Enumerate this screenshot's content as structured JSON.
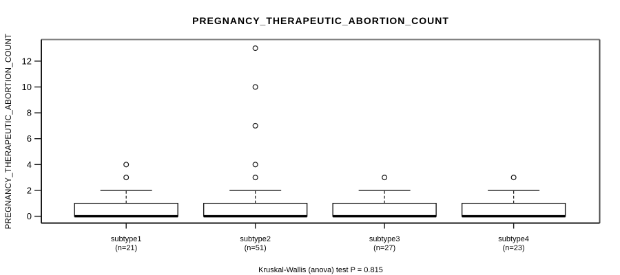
{
  "chart_data": {
    "type": "boxplot",
    "title": "PREGNANCY_THERAPEUTIC_ABORTION_COUNT",
    "ylabel": "PREGNANCY_THERAPEUTIC_ABORTION_COUNT",
    "footer": "Kruskal-Wallis (anova) test P = 0.815",
    "yticks": [
      0,
      2,
      4,
      6,
      8,
      10,
      12
    ],
    "ylim": [
      -0.53,
      13.67
    ],
    "xlim": [
      0.343,
      4.666
    ],
    "grid": false,
    "legend": "none",
    "colors": {
      "box_stroke": "#1a1a1a",
      "box_fill": "#ffffff",
      "median": "#000000",
      "border_top": "#808080",
      "border_right": "#4a4a4a",
      "border_dark": "#1a1a1a"
    },
    "box_width": 0.8,
    "cap_width": 0.4,
    "groups": [
      {
        "position": 1,
        "label": "subtype1",
        "n_label": "(n=21)",
        "n": 21,
        "median": 0,
        "q1": 0,
        "q3": 1,
        "whisker_low": 0,
        "whisker_high": 2,
        "outliers": [
          3,
          4
        ]
      },
      {
        "position": 2,
        "label": "subtype2",
        "n_label": "(n=51)",
        "n": 51,
        "median": 0,
        "q1": 0,
        "q3": 1,
        "whisker_low": 0,
        "whisker_high": 2,
        "outliers": [
          3,
          4,
          7,
          10,
          13
        ]
      },
      {
        "position": 3,
        "label": "subtype3",
        "n_label": "(n=27)",
        "n": 27,
        "median": 0,
        "q1": 0,
        "q3": 1,
        "whisker_low": 0,
        "whisker_high": 2,
        "outliers": [
          3
        ]
      },
      {
        "position": 4,
        "label": "subtype4",
        "n_label": "(n=23)",
        "n": 23,
        "median": 0,
        "q1": 0,
        "q3": 1,
        "whisker_low": 0,
        "whisker_high": 2,
        "outliers": [
          3
        ]
      }
    ]
  }
}
